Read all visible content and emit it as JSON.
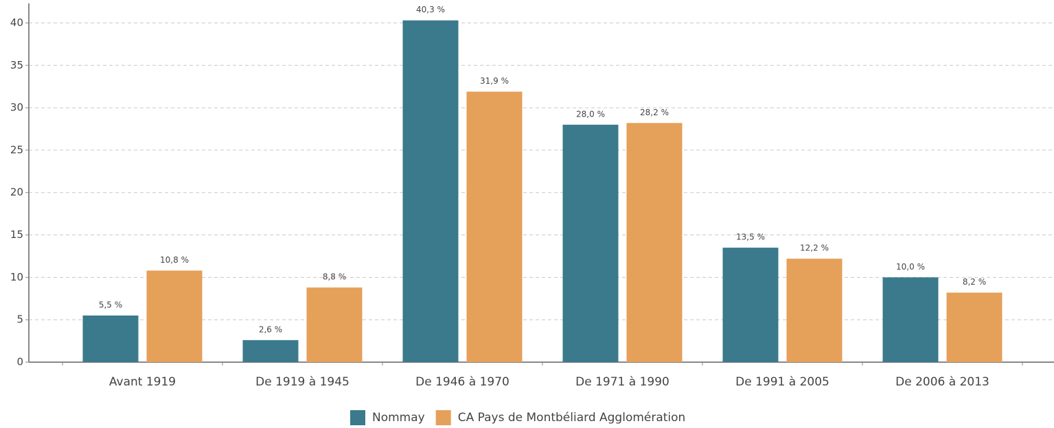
{
  "chart_data": {
    "type": "bar",
    "categories": [
      "Avant 1919",
      "De 1919 à 1945",
      "De 1946 à 1970",
      "De 1971 à 1990",
      "De 1991 à 2005",
      "De 2006 à 2013"
    ],
    "series": [
      {
        "name": "Nommay",
        "color": "#3a7a8c",
        "values": [
          5.5,
          2.6,
          40.3,
          28.0,
          13.5,
          10.0
        ],
        "value_labels": [
          "5,5 %",
          "2,6 %",
          "40,3 %",
          "28,0 %",
          "13,5 %",
          "10,0 %"
        ]
      },
      {
        "name": "CA Pays de Montbéliard Agglomération",
        "color": "#e5a05a",
        "values": [
          10.8,
          8.8,
          31.9,
          28.2,
          12.2,
          8.2
        ],
        "value_labels": [
          "10,8 %",
          "8,8 %",
          "31,9 %",
          "28,2 %",
          "12,2 %",
          "8,2 %"
        ]
      }
    ],
    "ylim": [
      0,
      42.3
    ],
    "yticks": [
      0,
      5,
      10,
      15,
      20,
      25,
      30,
      35,
      40
    ],
    "grid": true,
    "legend": "bottom"
  }
}
